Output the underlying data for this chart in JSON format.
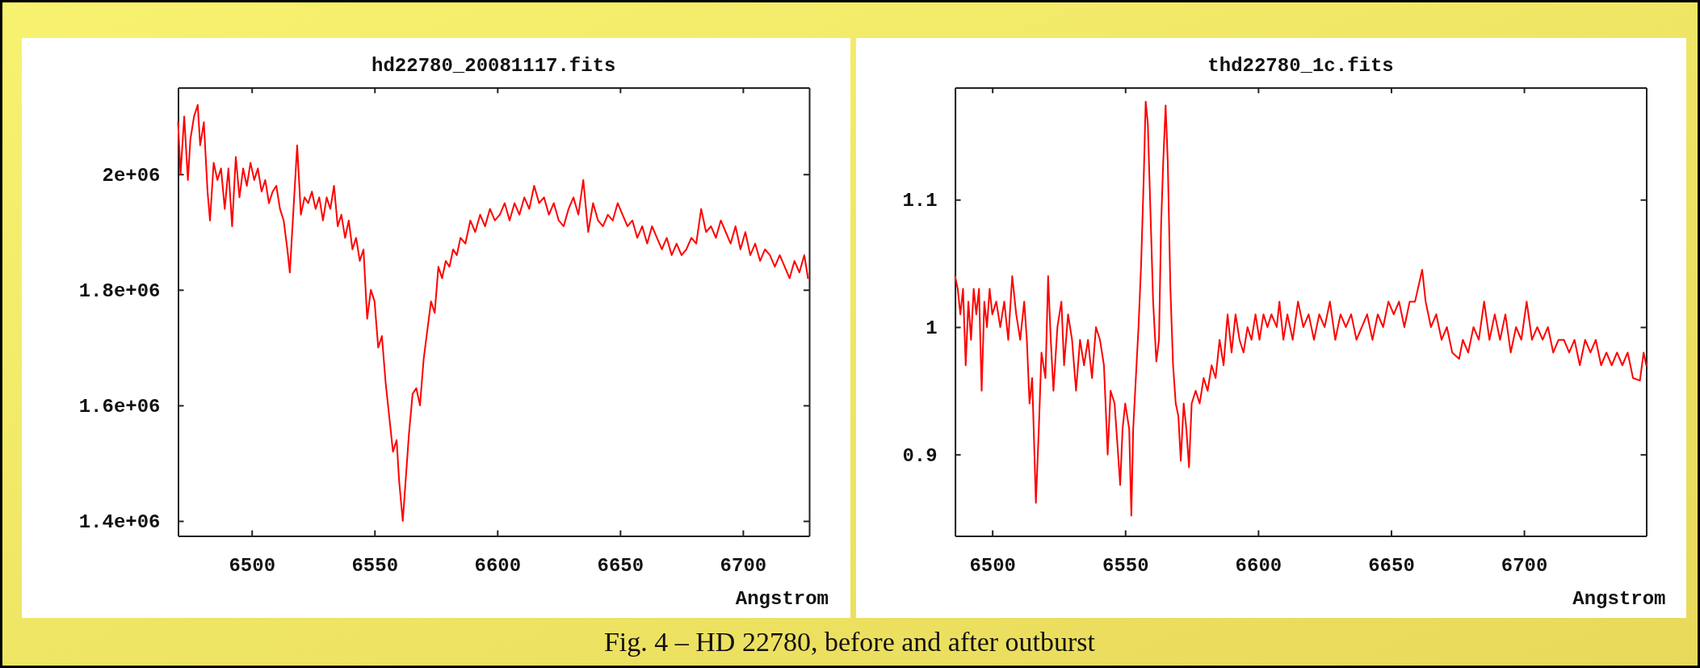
{
  "chart_data": [
    {
      "type": "line",
      "title": "hd22780_20081117.fits",
      "xlabel": "Angstrom",
      "annotations": [
        "Fig. 4 – HD 22780, before and after outburst"
      ],
      "xlim": [
        6470,
        6727
      ],
      "ylim": [
        1374000,
        2150000
      ],
      "xticks": [
        6500,
        6550,
        6600,
        6650,
        6700
      ],
      "yticks": [
        {
          "value": 1400000,
          "label": "1.4e+06"
        },
        {
          "value": 1600000,
          "label": "1.6e+06"
        },
        {
          "value": 1800000,
          "label": "1.8e+06"
        },
        {
          "value": 2000000,
          "label": "2e+06"
        }
      ],
      "x": [
        6470,
        6471,
        6472.5,
        6474,
        6475,
        6476.5,
        6478,
        6479,
        6480.5,
        6482,
        6483,
        6484.5,
        6486,
        6487.5,
        6489,
        6490.5,
        6492,
        6493.5,
        6495,
        6496.5,
        6498,
        6499.5,
        6501,
        6502.5,
        6504,
        6505.5,
        6507,
        6508.5,
        6510,
        6511.5,
        6513,
        6514.5,
        6515.5,
        6517,
        6518.5,
        6520,
        6521.5,
        6523,
        6524.5,
        6526,
        6527.5,
        6529,
        6530.5,
        6532,
        6533.5,
        6535,
        6536.5,
        6538,
        6539.5,
        6541,
        6542.5,
        6544,
        6545.5,
        6547,
        6548.5,
        6550,
        6551.5,
        6553,
        6554.5,
        6556,
        6557.5,
        6559,
        6560,
        6561.5,
        6562.5,
        6564,
        6565.5,
        6567,
        6568.5,
        6570,
        6571.5,
        6573,
        6574.5,
        6576,
        6577.5,
        6579,
        6580.5,
        6582,
        6583.5,
        6585,
        6587,
        6589,
        6591,
        6593,
        6595,
        6597,
        6599,
        6601,
        6603,
        6605,
        6607,
        6609,
        6611,
        6613,
        6615,
        6617,
        6619,
        6621,
        6623,
        6625,
        6627,
        6629,
        6631,
        6633,
        6635,
        6637,
        6639,
        6641,
        6643,
        6645,
        6647,
        6649,
        6651,
        6653,
        6655,
        6657,
        6659,
        6661,
        6663,
        6665,
        6667,
        6669,
        6671,
        6673,
        6675,
        6677,
        6679,
        6681,
        6683,
        6685,
        6687,
        6689,
        6691,
        6693,
        6695,
        6697,
        6699,
        6701,
        6703,
        6705,
        6707,
        6709,
        6711,
        6713,
        6715,
        6717,
        6719,
        6721,
        6723,
        6725,
        6726.5
      ],
      "series": [
        {
          "color": "#ff0000",
          "values": [
            2090000,
            2000000,
            2100000,
            1990000,
            2060000,
            2100000,
            2120000,
            2050000,
            2090000,
            1970000,
            1920000,
            2020000,
            1990000,
            2010000,
            1940000,
            2010000,
            1910000,
            2030000,
            1960000,
            2010000,
            1980000,
            2020000,
            1990000,
            2010000,
            1970000,
            1990000,
            1950000,
            1970000,
            1980000,
            1940000,
            1920000,
            1870000,
            1830000,
            1940000,
            2050000,
            1930000,
            1960000,
            1950000,
            1970000,
            1940000,
            1960000,
            1920000,
            1960000,
            1940000,
            1980000,
            1910000,
            1930000,
            1890000,
            1920000,
            1870000,
            1890000,
            1850000,
            1870000,
            1750000,
            1800000,
            1780000,
            1700000,
            1720000,
            1640000,
            1580000,
            1520000,
            1540000,
            1470000,
            1400000,
            1460000,
            1550000,
            1620000,
            1630000,
            1600000,
            1680000,
            1730000,
            1780000,
            1760000,
            1840000,
            1820000,
            1850000,
            1840000,
            1870000,
            1860000,
            1890000,
            1880000,
            1920000,
            1900000,
            1930000,
            1910000,
            1940000,
            1920000,
            1930000,
            1950000,
            1920000,
            1950000,
            1930000,
            1960000,
            1940000,
            1980000,
            1950000,
            1960000,
            1930000,
            1950000,
            1920000,
            1910000,
            1940000,
            1960000,
            1930000,
            1990000,
            1900000,
            1950000,
            1920000,
            1910000,
            1930000,
            1920000,
            1950000,
            1930000,
            1910000,
            1920000,
            1890000,
            1910000,
            1880000,
            1910000,
            1890000,
            1870000,
            1890000,
            1860000,
            1880000,
            1860000,
            1870000,
            1890000,
            1880000,
            1940000,
            1900000,
            1910000,
            1890000,
            1920000,
            1900000,
            1880000,
            1910000,
            1870000,
            1900000,
            1860000,
            1880000,
            1850000,
            1870000,
            1860000,
            1840000,
            1860000,
            1840000,
            1820000,
            1850000,
            1830000,
            1860000,
            1820000
          ]
        }
      ]
    },
    {
      "type": "line",
      "title": "thd22780_1c.fits",
      "xlabel": "Angstrom",
      "xlim": [
        6486,
        6746
      ],
      "ylim": [
        0.836,
        1.188
      ],
      "xticks": [
        6500,
        6550,
        6600,
        6650,
        6700
      ],
      "yticks": [
        0.9,
        1,
        1.1
      ],
      "x": [
        6486,
        6487,
        6488,
        6489,
        6490,
        6491,
        6492,
        6493,
        6494,
        6495,
        6496,
        6497,
        6498,
        6499,
        6500,
        6501.5,
        6503,
        6504.5,
        6506,
        6507.5,
        6509,
        6510.5,
        6512,
        6513,
        6514,
        6515,
        6516.4,
        6517.5,
        6518.5,
        6520,
        6521,
        6522,
        6523,
        6524.5,
        6526,
        6527,
        6528.5,
        6530,
        6531.5,
        6533,
        6534.5,
        6536,
        6537.5,
        6539,
        6540.5,
        6542,
        6543.4,
        6544.5,
        6546,
        6547,
        6548.1,
        6549,
        6550,
        6551.5,
        6552.3,
        6553,
        6554,
        6555,
        6556,
        6557,
        6557.7,
        6558.5,
        6559.5,
        6560.5,
        6561.7,
        6562.7,
        6563.5,
        6564.3,
        6565.2,
        6566,
        6567,
        6568,
        6569,
        6570,
        6570.9,
        6572,
        6573,
        6574,
        6575,
        6576.5,
        6578,
        6579.5,
        6581,
        6582.5,
        6584,
        6585.5,
        6587,
        6588.5,
        6590,
        6591.5,
        6593,
        6594.5,
        6596,
        6597.5,
        6599,
        6600.5,
        6602,
        6603.5,
        6605,
        6607,
        6608,
        6609.5,
        6611,
        6613,
        6615,
        6617,
        6619,
        6621,
        6623,
        6625,
        6627,
        6629,
        6631,
        6633,
        6635,
        6637,
        6639,
        6641,
        6643,
        6645,
        6647,
        6649,
        6651,
        6653,
        6655,
        6657,
        6659,
        6661.7,
        6663,
        6665,
        6667,
        6669,
        6671,
        6673,
        6675.6,
        6677,
        6679,
        6681,
        6683,
        6685,
        6687,
        6689,
        6691,
        6693,
        6695,
        6697,
        6699,
        6701,
        6703,
        6705,
        6707,
        6709,
        6711,
        6713,
        6715,
        6717,
        6719,
        6721,
        6723,
        6725,
        6727,
        6729,
        6731,
        6733,
        6735,
        6737,
        6739,
        6741,
        6743.6,
        6745,
        6746
      ],
      "series": [
        {
          "color": "#ff0000",
          "values": [
            1.04,
            1.03,
            1.01,
            1.03,
            0.97,
            1.02,
            0.99,
            1.03,
            1.01,
            1.03,
            0.95,
            1.02,
            1.0,
            1.03,
            1.01,
            1.02,
            1.0,
            1.02,
            0.99,
            1.04,
            1.01,
            0.99,
            1.02,
            0.99,
            0.94,
            0.96,
            0.862,
            0.92,
            0.98,
            0.96,
            1.04,
            0.99,
            0.95,
            1.0,
            1.02,
            0.97,
            1.01,
            0.99,
            0.95,
            0.99,
            0.97,
            0.99,
            0.96,
            1.0,
            0.99,
            0.97,
            0.9,
            0.95,
            0.94,
            0.91,
            0.876,
            0.92,
            0.94,
            0.92,
            0.852,
            0.92,
            0.96,
            1.0,
            1.05,
            1.12,
            1.177,
            1.16,
            1.09,
            1.02,
            0.973,
            0.99,
            1.08,
            1.13,
            1.174,
            1.13,
            1.03,
            0.97,
            0.94,
            0.93,
            0.895,
            0.94,
            0.92,
            0.89,
            0.94,
            0.95,
            0.94,
            0.96,
            0.95,
            0.97,
            0.96,
            0.99,
            0.97,
            1.01,
            0.98,
            1.01,
            0.99,
            0.98,
            1.0,
            0.99,
            1.01,
            0.99,
            1.01,
            1.0,
            1.01,
            1.0,
            1.02,
            0.99,
            1.01,
            0.99,
            1.02,
            1.0,
            1.01,
            0.99,
            1.01,
            1.0,
            1.02,
            0.99,
            1.01,
            1.0,
            1.01,
            0.99,
            1.0,
            1.01,
            0.99,
            1.01,
            1.0,
            1.02,
            1.01,
            1.02,
            1.0,
            1.02,
            1.02,
            1.045,
            1.02,
            1.0,
            1.01,
            0.99,
            1.0,
            0.98,
            0.975,
            0.99,
            0.98,
            1.0,
            0.99,
            1.02,
            0.99,
            1.01,
            0.99,
            1.01,
            0.98,
            1.0,
            0.99,
            1.02,
            0.99,
            1.0,
            0.99,
            1.0,
            0.98,
            0.99,
            0.99,
            0.98,
            0.99,
            0.97,
            0.99,
            0.98,
            0.99,
            0.97,
            0.98,
            0.97,
            0.98,
            0.97,
            0.98,
            0.96,
            0.958,
            0.98,
            0.97
          ]
        }
      ]
    }
  ]
}
